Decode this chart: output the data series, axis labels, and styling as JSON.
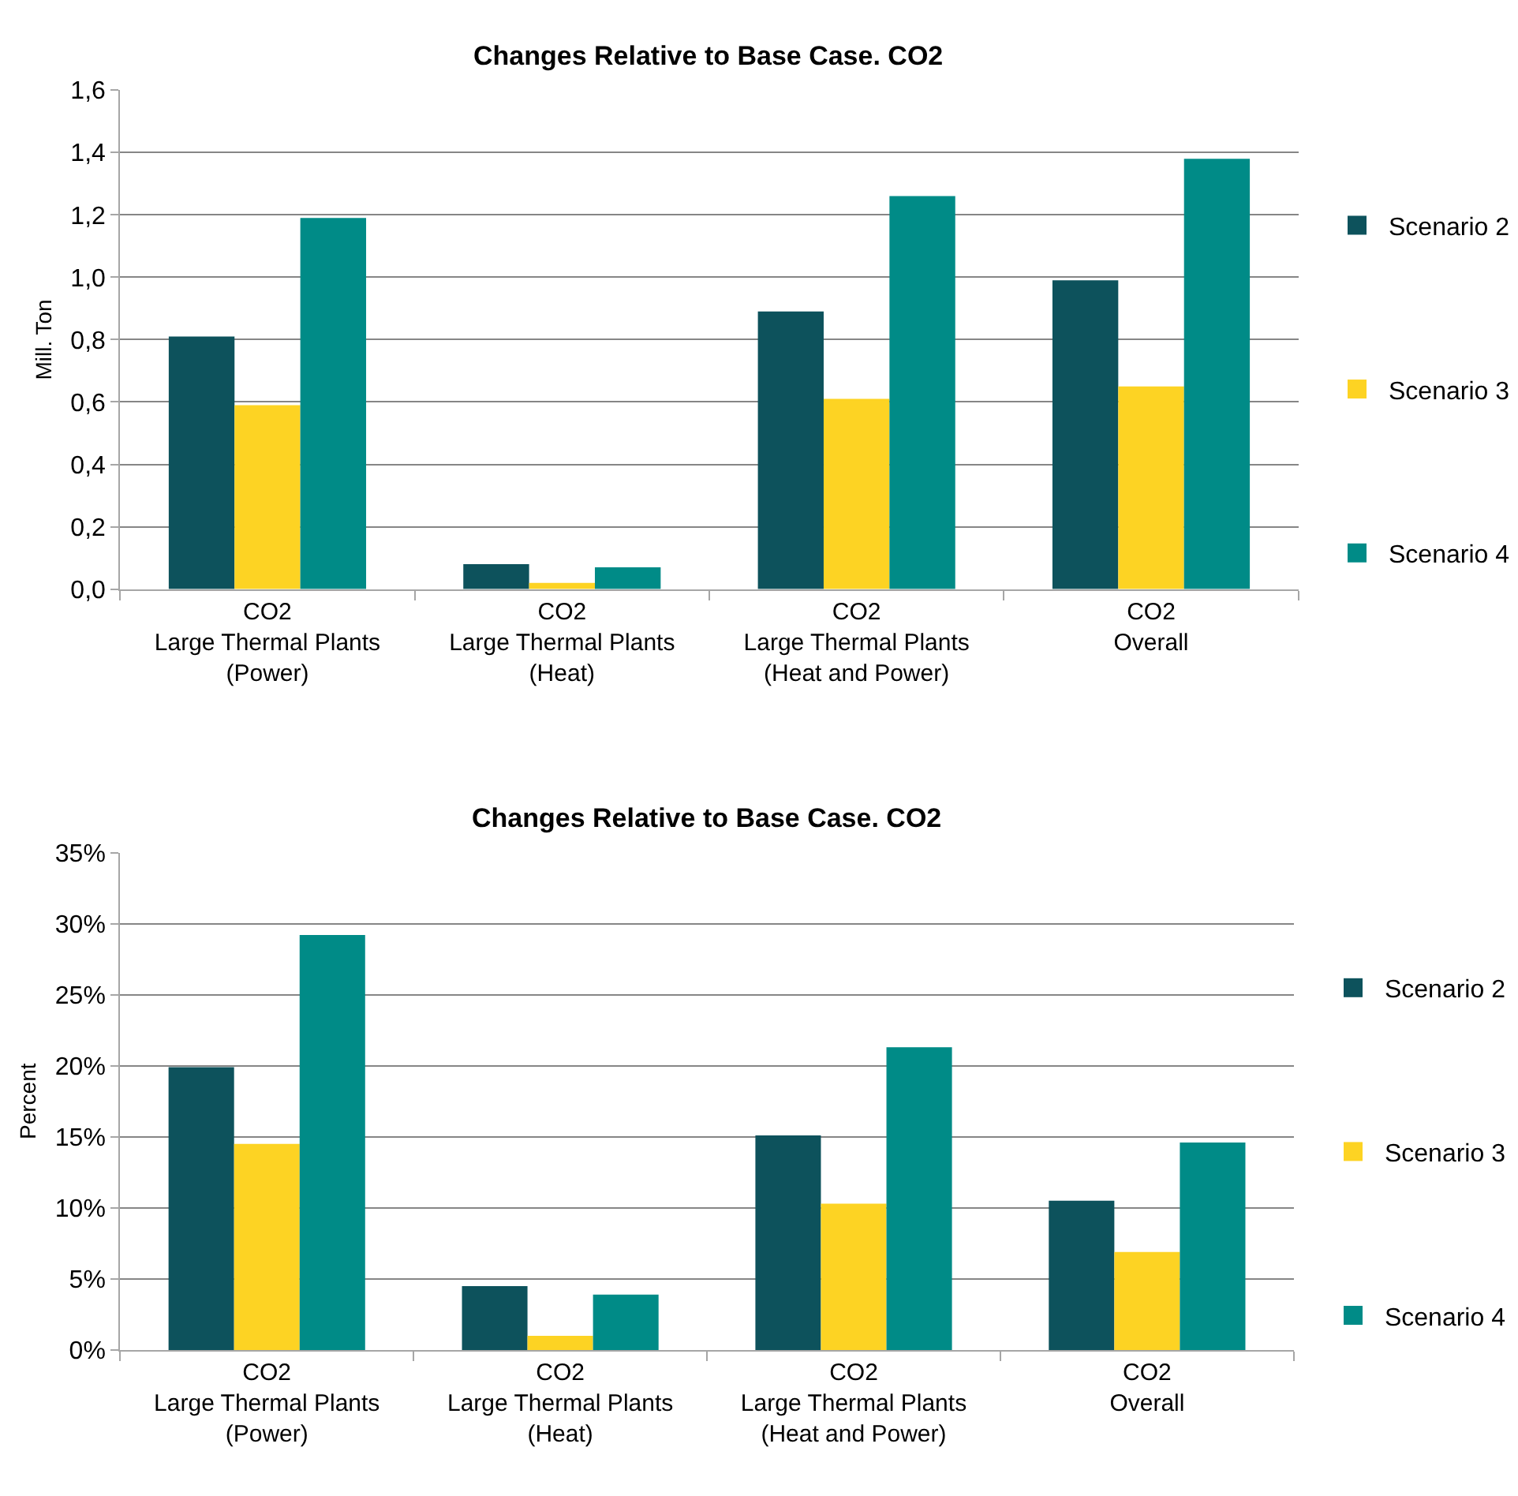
{
  "chart_data": [
    {
      "type": "bar",
      "title": "Changes Relative to Base Case. CO2",
      "ylabel": "Mill. Ton",
      "categories": [
        "CO2\nLarge Thermal Plants\n(Power)",
        "CO2\nLarge Thermal Plants\n(Heat)",
        "CO2\nLarge Thermal Plants\n(Heat and Power)",
        "CO2\nOverall"
      ],
      "series": [
        {
          "name": "Scenario 2",
          "color": "#0d525c",
          "values": [
            0.81,
            0.08,
            0.89,
            0.99
          ]
        },
        {
          "name": "Scenario 3",
          "color": "#fdd323",
          "values": [
            0.59,
            0.02,
            0.61,
            0.65
          ]
        },
        {
          "name": "Scenario 4",
          "color": "#008b87",
          "values": [
            1.19,
            0.07,
            1.26,
            1.38
          ]
        }
      ],
      "ylim": [
        0,
        1.6
      ],
      "yticks": [
        {
          "value": 0,
          "label": "0,0"
        },
        {
          "value": 0.2,
          "label": "0,2"
        },
        {
          "value": 0.4,
          "label": "0,4"
        },
        {
          "value": 0.6,
          "label": "0,6"
        },
        {
          "value": 0.8,
          "label": "0,8"
        },
        {
          "value": 1.0,
          "label": "1,0"
        },
        {
          "value": 1.2,
          "label": "1,2"
        },
        {
          "value": 1.4,
          "label": "1,4"
        },
        {
          "value": 1.6,
          "label": "1,6"
        }
      ],
      "grid": "y",
      "legend": "right"
    },
    {
      "type": "bar",
      "title": "Changes Relative to Base Case. CO2",
      "ylabel": "Percent",
      "categories": [
        "CO2\nLarge Thermal Plants\n(Power)",
        "CO2\nLarge Thermal Plants\n(Heat)",
        "CO2\nLarge Thermal Plants\n(Heat and Power)",
        "CO2\nOverall"
      ],
      "series": [
        {
          "name": "Scenario 2",
          "color": "#0d525c",
          "values": [
            19.9,
            4.5,
            15.1,
            10.5
          ]
        },
        {
          "name": "Scenario 3",
          "color": "#fdd323",
          "values": [
            14.5,
            1.0,
            10.3,
            6.9
          ]
        },
        {
          "name": "Scenario 4",
          "color": "#008b87",
          "values": [
            29.2,
            3.9,
            21.3,
            14.6
          ]
        }
      ],
      "ylim": [
        0,
        35
      ],
      "yticks": [
        {
          "value": 0,
          "label": "0%"
        },
        {
          "value": 5,
          "label": "5%"
        },
        {
          "value": 10,
          "label": "10%"
        },
        {
          "value": 15,
          "label": "15%"
        },
        {
          "value": 20,
          "label": "20%"
        },
        {
          "value": 25,
          "label": "25%"
        },
        {
          "value": 30,
          "label": "30%"
        },
        {
          "value": 35,
          "label": "35%"
        }
      ],
      "grid": "y",
      "legend": "right"
    }
  ]
}
